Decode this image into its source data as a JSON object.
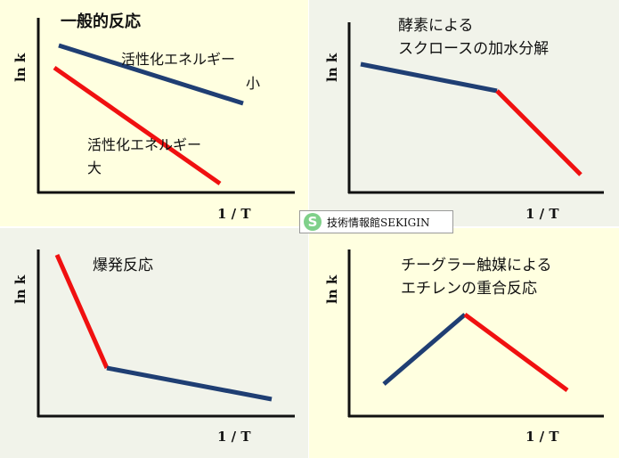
{
  "colors": {
    "panel_yellow": "#ffffe0",
    "panel_gray": "#f1f3ea",
    "line_blue": "#1f3e73",
    "line_red": "#f01010",
    "axis": "#111111"
  },
  "panels": [
    {
      "title": "一般的反応",
      "ylabel": "ln k",
      "xlabel": "1 / T",
      "labels": [
        "活性化エネルギー",
        "小",
        "活性化エネルギー",
        "大"
      ]
    },
    {
      "title_lines": [
        "酵素による",
        "スクロースの加水分解"
      ],
      "ylabel": "ln k",
      "xlabel": "1 / T"
    },
    {
      "title": "爆発反応",
      "ylabel": "ln k",
      "xlabel": "1 / T"
    },
    {
      "title_lines": [
        "チーグラー触媒による",
        "エチレンの重合反応"
      ],
      "ylabel": "ln k",
      "xlabel": "1 / T"
    }
  ],
  "badge": {
    "icon": "S",
    "text": "技術情報館SEKIGIN"
  }
}
